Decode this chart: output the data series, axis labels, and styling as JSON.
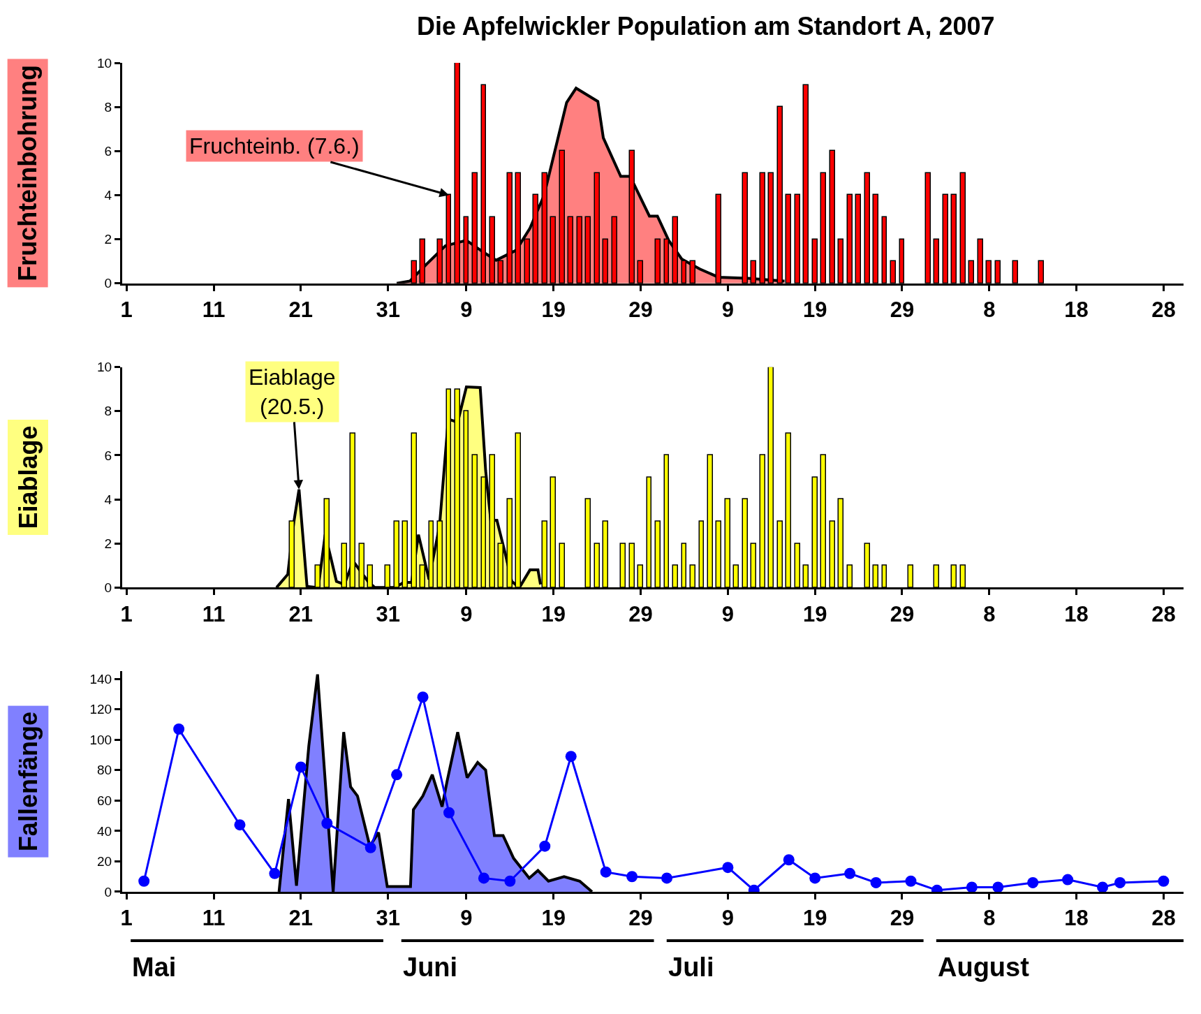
{
  "chart_data": [
    {
      "type": "bar",
      "title": "Die Apfelwickler Population am Standort A, 2007",
      "ylabel": "Fruchteinbohrung",
      "xlim": [
        "2007-04-30T12:00",
        "2007-08-30T07:00"
      ],
      "xticks": [
        {
          "value": "2007-05-01",
          "label": "1"
        },
        {
          "value": "2007-05-11",
          "label": "11"
        },
        {
          "value": "2007-05-21",
          "label": "21"
        },
        {
          "value": "2007-05-31",
          "label": "31"
        },
        {
          "value": "2007-06-09",
          "label": "9"
        },
        {
          "value": "2007-06-19",
          "label": "19"
        },
        {
          "value": "2007-06-29",
          "label": "29"
        },
        {
          "value": "2007-07-09",
          "label": "9"
        },
        {
          "value": "2007-07-19",
          "label": "19"
        },
        {
          "value": "2007-07-29",
          "label": "29"
        },
        {
          "value": "2007-08-08",
          "label": "8"
        },
        {
          "value": "2007-08-18",
          "label": "18"
        },
        {
          "value": "2007-08-28",
          "label": "28"
        }
      ],
      "ylim": [
        0,
        10
      ],
      "yticks": [
        0,
        2,
        4,
        6,
        8,
        10
      ],
      "annotations": [
        {
          "text": "Fruchteinb. (7.6.)",
          "x": "2007-06-07",
          "y": 4
        }
      ],
      "series": [
        {
          "type": "area",
          "color": "#ff8080",
          "x": [
            "2007-06-01",
            "2007-06-02T12:00",
            "2007-06-04T12:00",
            "2007-06-06T14:00",
            "2007-06-09",
            "2007-06-11",
            "2007-06-12T10:00",
            "2007-06-14T17:00",
            "2007-06-16T07:00",
            "2007-06-17T22:00",
            "2007-06-20T12:00",
            "2007-06-21T14:00",
            "2007-06-24T02:00",
            "2007-06-24T17:00",
            "2007-06-26T17:00",
            "2007-06-27T19:00",
            "2007-06-30",
            "2007-06-30T22:00",
            "2007-07-02T05:00",
            "2007-07-03T17:00",
            "2007-07-05T19:00",
            "2007-07-07T22:00",
            "2007-07-11T07:00",
            "2007-07-15T12:00"
          ],
          "values": [
            0,
            0.1,
            0.9,
            1.7,
            1.95,
            1.4,
            1.05,
            1.5,
            2.5,
            4.0,
            8.2,
            8.85,
            8.25,
            6.6,
            4.85,
            4.85,
            3.05,
            3.05,
            1.95,
            1.1,
            0.65,
            0.28,
            0.23,
            0.1
          ]
        },
        {
          "color": "#ff0000",
          "x": [
            "2007-06-03",
            "2007-06-04",
            "2007-06-06",
            "2007-06-07",
            "2007-06-08",
            "2007-06-09",
            "2007-06-10",
            "2007-06-11",
            "2007-06-12",
            "2007-06-13",
            "2007-06-14",
            "2007-06-15",
            "2007-06-16",
            "2007-06-17",
            "2007-06-18",
            "2007-06-19",
            "2007-06-20",
            "2007-06-21",
            "2007-06-22",
            "2007-06-23",
            "2007-06-24",
            "2007-06-25",
            "2007-06-26",
            "2007-06-28",
            "2007-06-29",
            "2007-07-01",
            "2007-07-02",
            "2007-07-03",
            "2007-07-04",
            "2007-07-05",
            "2007-07-08",
            "2007-07-11",
            "2007-07-12",
            "2007-07-13",
            "2007-07-14",
            "2007-07-15",
            "2007-07-16",
            "2007-07-17",
            "2007-07-18",
            "2007-07-19",
            "2007-07-20",
            "2007-07-21",
            "2007-07-22",
            "2007-07-23",
            "2007-07-24",
            "2007-07-25",
            "2007-07-26",
            "2007-07-27",
            "2007-07-28",
            "2007-07-29",
            "2007-08-01",
            "2007-08-02",
            "2007-08-03",
            "2007-08-04",
            "2007-08-05",
            "2007-08-06",
            "2007-08-07",
            "2007-08-08",
            "2007-08-09",
            "2007-08-11",
            "2007-08-14"
          ],
          "values": [
            1,
            2,
            2,
            4,
            10,
            3,
            5,
            9,
            3,
            1,
            5,
            5,
            2,
            4,
            5,
            3,
            6,
            3,
            3,
            3,
            5,
            2,
            3,
            6,
            1,
            2,
            2,
            3,
            1,
            1,
            4,
            5,
            1,
            5,
            5,
            8,
            4,
            4,
            9,
            2,
            5,
            6,
            2,
            4,
            4,
            5,
            4,
            3,
            1,
            2,
            5,
            2,
            4,
            4,
            5,
            1,
            2,
            1,
            1,
            1,
            1
          ]
        }
      ]
    },
    {
      "type": "bar",
      "ylabel": "Eiablage",
      "xlim": [
        "2007-04-30T12:00",
        "2007-08-30T07:00"
      ],
      "xticks": [
        {
          "value": "2007-05-01",
          "label": "1"
        },
        {
          "value": "2007-05-11",
          "label": "11"
        },
        {
          "value": "2007-05-21",
          "label": "21"
        },
        {
          "value": "2007-05-31",
          "label": "31"
        },
        {
          "value": "2007-06-09",
          "label": "9"
        },
        {
          "value": "2007-06-19",
          "label": "19"
        },
        {
          "value": "2007-06-29",
          "label": "29"
        },
        {
          "value": "2007-07-09",
          "label": "9"
        },
        {
          "value": "2007-07-19",
          "label": "19"
        },
        {
          "value": "2007-07-29",
          "label": "29"
        },
        {
          "value": "2007-08-08",
          "label": "8"
        },
        {
          "value": "2007-08-18",
          "label": "18"
        },
        {
          "value": "2007-08-28",
          "label": "28"
        }
      ],
      "ylim": [
        0,
        10
      ],
      "yticks": [
        0,
        2,
        4,
        6,
        8,
        10
      ],
      "annotations": [
        {
          "text": "Eiablage\n(20.5.)",
          "x": "2007-05-20T19:00",
          "y": 4.45
        }
      ],
      "series": [
        {
          "type": "area",
          "color": "#ffff80",
          "x": [
            "2007-05-18T05:00",
            "2007-05-19T12:00",
            "2007-05-20T05:00",
            "2007-05-20T19:00",
            "2007-05-21T17:00",
            "2007-05-23",
            "2007-05-23T19:00",
            "2007-05-24T10:00",
            "2007-05-25T02:00",
            "2007-05-26",
            "2007-05-27",
            "2007-05-28T17:00",
            "2007-05-29T12:00",
            "2007-05-31T19:00",
            "2007-06-01T19:00",
            "2007-06-02T17:00",
            "2007-06-03T12:00",
            "2007-06-04T17:00",
            "2007-06-05T22:00",
            "2007-06-06T22:00",
            "2007-06-08",
            "2007-06-09",
            "2007-06-10T14:00",
            "2007-06-11T05:00",
            "2007-06-11T19:00",
            "2007-06-12T12:00",
            "2007-06-13T10:00",
            "2007-06-14T05:00",
            "2007-06-15T02:00",
            "2007-06-16T07:00",
            "2007-06-17T05:00",
            "2007-06-17T12:00"
          ],
          "values": [
            0,
            0.6,
            3.0,
            4.45,
            0.05,
            0,
            2.4,
            1.4,
            0.28,
            0.14,
            1.2,
            0.28,
            0,
            0,
            0.23,
            0.23,
            2.4,
            0.37,
            2.8,
            7.64,
            7.5,
            9.1,
            9.07,
            5.3,
            3.05,
            3.05,
            1.6,
            0.28,
            0,
            0.8,
            0.8,
            0.14
          ]
        },
        {
          "color": "#ffff00",
          "x": [
            "2007-05-20",
            "2007-05-23",
            "2007-05-24",
            "2007-05-26",
            "2007-05-27",
            "2007-05-28",
            "2007-05-29",
            "2007-05-31",
            "2007-06-01",
            "2007-06-02",
            "2007-06-03",
            "2007-06-04",
            "2007-06-05",
            "2007-06-06",
            "2007-06-07",
            "2007-06-08",
            "2007-06-09",
            "2007-06-10",
            "2007-06-11",
            "2007-06-12",
            "2007-06-13",
            "2007-06-14",
            "2007-06-15",
            "2007-06-18",
            "2007-06-19",
            "2007-06-20",
            "2007-06-23",
            "2007-06-24",
            "2007-06-25",
            "2007-06-27",
            "2007-06-28",
            "2007-06-29",
            "2007-06-30",
            "2007-07-01",
            "2007-07-02",
            "2007-07-03",
            "2007-07-04",
            "2007-07-05",
            "2007-07-06",
            "2007-07-07",
            "2007-07-08",
            "2007-07-09",
            "2007-07-10",
            "2007-07-11",
            "2007-07-12",
            "2007-07-13",
            "2007-07-14",
            "2007-07-15",
            "2007-07-16",
            "2007-07-17",
            "2007-07-18",
            "2007-07-19",
            "2007-07-20",
            "2007-07-21",
            "2007-07-22",
            "2007-07-23",
            "2007-07-25",
            "2007-07-26",
            "2007-07-27",
            "2007-07-30",
            "2007-08-02",
            "2007-08-04",
            "2007-08-05"
          ],
          "values": [
            3,
            1,
            4,
            2,
            7,
            2,
            1,
            1,
            3,
            3,
            7,
            1,
            3,
            3,
            9,
            9,
            8,
            6,
            5,
            6,
            2,
            4,
            7,
            3,
            5,
            2,
            4,
            2,
            3,
            2,
            2,
            1,
            5,
            3,
            6,
            1,
            2,
            1,
            3,
            6,
            3,
            4,
            1,
            4,
            2,
            6,
            10,
            3,
            7,
            2,
            1,
            5,
            6,
            3,
            4,
            1,
            2,
            1,
            1,
            1,
            1,
            1,
            1
          ]
        }
      ]
    },
    {
      "type": "line",
      "ylabel": "Fallenfänge",
      "xlim": [
        "2007-04-30T12:00",
        "2007-08-30T07:00"
      ],
      "xticks": [
        {
          "value": "2007-05-01",
          "label": "1"
        },
        {
          "value": "2007-05-11",
          "label": "11"
        },
        {
          "value": "2007-05-21",
          "label": "21"
        },
        {
          "value": "2007-05-31",
          "label": "31"
        },
        {
          "value": "2007-06-09",
          "label": "9"
        },
        {
          "value": "2007-06-19",
          "label": "19"
        },
        {
          "value": "2007-06-29",
          "label": "29"
        },
        {
          "value": "2007-07-09",
          "label": "9"
        },
        {
          "value": "2007-07-19",
          "label": "19"
        },
        {
          "value": "2007-07-29",
          "label": "29"
        },
        {
          "value": "2007-08-08",
          "label": "8"
        },
        {
          "value": "2007-08-18",
          "label": "18"
        },
        {
          "value": "2007-08-28",
          "label": "28"
        }
      ],
      "ylim": [
        0,
        145
      ],
      "yticks": [
        0,
        20,
        40,
        60,
        80,
        100,
        120,
        140
      ],
      "annotations": [
        "Mai",
        "Juni",
        "Juli",
        "August"
      ],
      "series": [
        {
          "type": "area",
          "color": "#8080ff",
          "x": [
            "2007-05-18T12:00",
            "2007-05-19T14:00",
            "2007-05-20T12:00",
            "2007-05-21T22:00",
            "2007-05-22T22:00",
            "2007-05-24T17:00",
            "2007-05-25T22:00",
            "2007-05-26T17:00",
            "2007-05-27T12:00",
            "2007-05-28T22:00",
            "2007-05-29T22:00",
            "2007-05-30T22:00",
            "2007-06-02T14:00",
            "2007-06-02T22:00",
            "2007-06-04",
            "2007-06-05T02:00",
            "2007-06-06T05:00",
            "2007-06-06T19:00",
            "2007-06-08",
            "2007-06-09T02:00",
            "2007-06-10T07:00",
            "2007-06-11T05:00",
            "2007-06-12T05:00",
            "2007-06-13T05:00",
            "2007-06-14T10:00",
            "2007-06-16T05:00",
            "2007-06-17T05:00",
            "2007-06-18T10:00",
            "2007-06-20T05:00",
            "2007-06-22",
            "2007-06-23T10:00"
          ],
          "values": [
            0,
            61,
            4,
            96,
            143,
            0,
            105,
            69,
            63,
            30,
            39,
            3.5,
            3.5,
            54,
            63,
            77,
            56,
            73,
            105,
            75,
            85,
            80,
            37,
            37,
            22,
            9,
            14,
            7,
            10,
            7,
            0
          ]
        },
        {
          "color": "#0000ff",
          "marker": "circle",
          "x": [
            "2007-05-03",
            "2007-05-07",
            "2007-05-14",
            "2007-05-18",
            "2007-05-21",
            "2007-05-24",
            "2007-05-29",
            "2007-06-01",
            "2007-06-04",
            "2007-06-07",
            "2007-06-11",
            "2007-06-14",
            "2007-06-18",
            "2007-06-21",
            "2007-06-25",
            "2007-06-28",
            "2007-07-02",
            "2007-07-09",
            "2007-07-12",
            "2007-07-16",
            "2007-07-19",
            "2007-07-23",
            "2007-07-26",
            "2007-07-30",
            "2007-08-02",
            "2007-08-06",
            "2007-08-09",
            "2007-08-13",
            "2007-08-17",
            "2007-08-21",
            "2007-08-23",
            "2007-08-28"
          ],
          "values": [
            7,
            107,
            44,
            12,
            82,
            45,
            29,
            77,
            128,
            52,
            9,
            7,
            30,
            89,
            13,
            10,
            9,
            16,
            1,
            21,
            9,
            12,
            6,
            7,
            1,
            3,
            3,
            6,
            8,
            3,
            6,
            7
          ]
        }
      ]
    }
  ]
}
